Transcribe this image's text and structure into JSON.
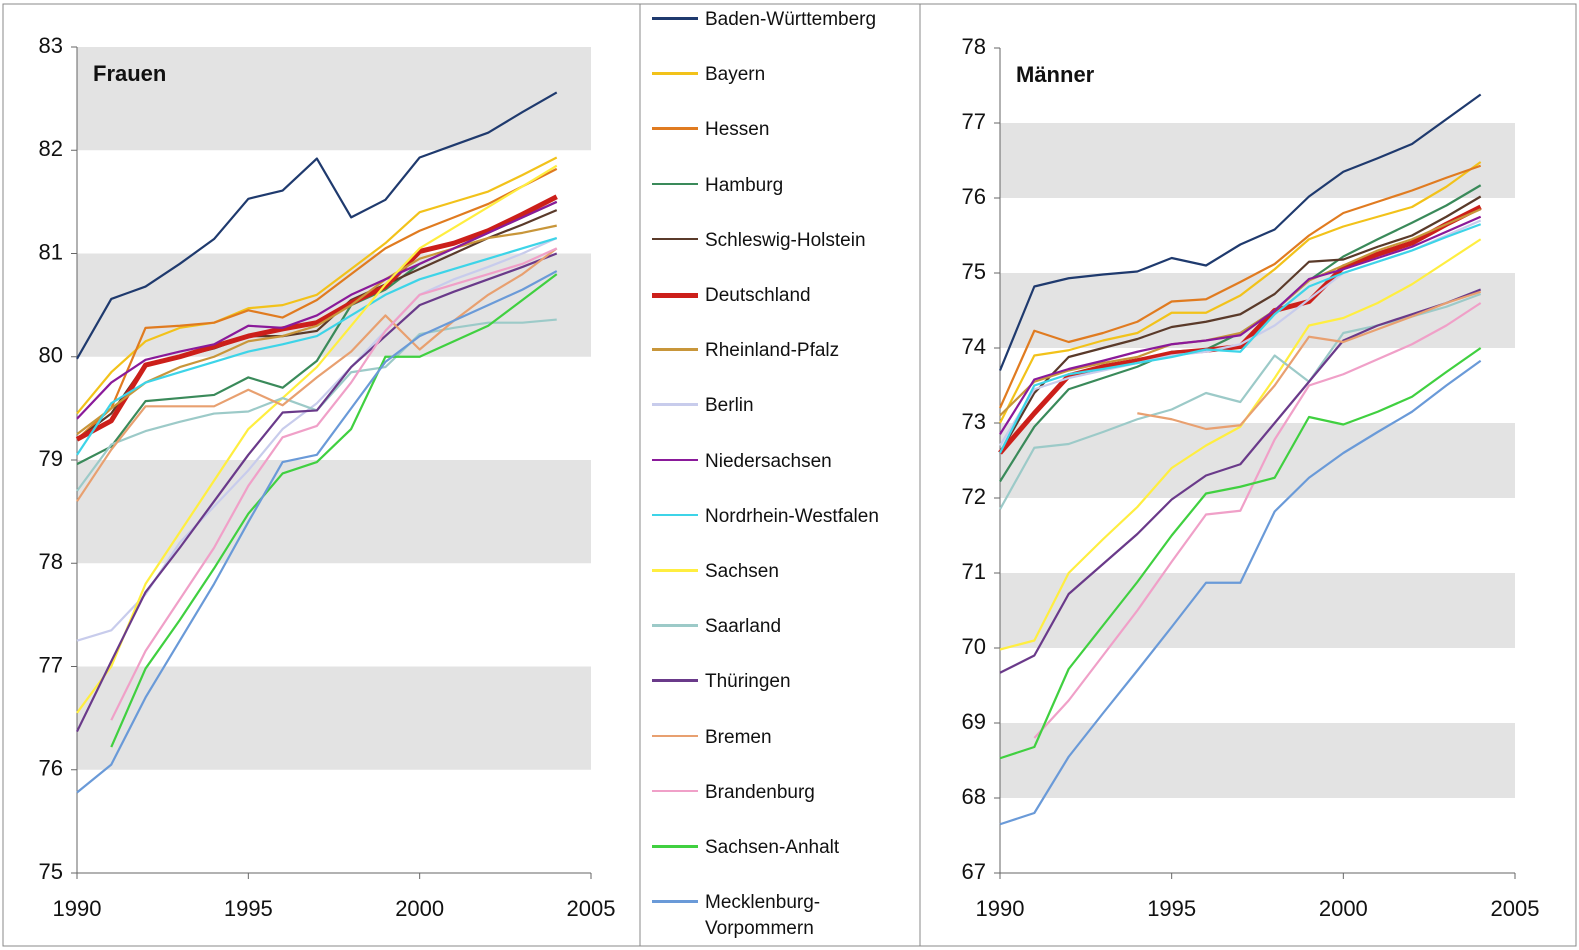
{
  "chart_data": [
    {
      "type": "line",
      "title": "Frauen",
      "x": [
        1990,
        1991,
        1992,
        1993,
        1994,
        1995,
        1996,
        1997,
        1998,
        1999,
        2000,
        2001,
        2002,
        2003,
        2004
      ],
      "xlim": [
        1990,
        2005
      ],
      "xticks": [
        1990,
        1995,
        2000,
        2005
      ],
      "ylim": [
        75,
        83
      ],
      "yticks": [
        75,
        76,
        77,
        78,
        79,
        80,
        81,
        82,
        83
      ],
      "grid": "bands",
      "series": [
        {
          "name": "Baden-Württemberg",
          "color": "#1f3a6e",
          "values": [
            79.98,
            80.56,
            80.68,
            80.9,
            81.14,
            81.53,
            81.61,
            81.92,
            81.35,
            81.52,
            81.93,
            82.05,
            82.17,
            82.37,
            82.56
          ]
        },
        {
          "name": "Bayern",
          "color": "#f2c21a",
          "values": [
            79.45,
            79.85,
            80.15,
            80.28,
            80.33,
            80.47,
            80.5,
            80.6,
            80.85,
            81.1,
            81.4,
            81.5,
            81.6,
            81.76,
            81.93
          ]
        },
        {
          "name": "Hessen",
          "color": "#e07b20",
          "values": [
            79.2,
            79.5,
            80.28,
            80.3,
            80.33,
            80.45,
            80.38,
            80.55,
            80.8,
            81.05,
            81.22,
            81.35,
            81.48,
            81.65,
            81.82
          ]
        },
        {
          "name": "Hamburg",
          "color": "#3a8a5a",
          "values": [
            78.96,
            79.13,
            79.57,
            79.6,
            79.63,
            79.8,
            79.7,
            79.96,
            80.5,
            80.65,
            80.9,
            81.05,
            81.2,
            81.35,
            81.5
          ]
        },
        {
          "name": "Schleswig-Holstein",
          "color": "#5a3a2a",
          "values": [
            79.2,
            79.45,
            79.93,
            80.0,
            80.08,
            80.2,
            80.2,
            80.25,
            80.55,
            80.7,
            80.85,
            81.0,
            81.15,
            81.28,
            81.42
          ]
        },
        {
          "name": "Deutschland",
          "color": "#cc1f1a",
          "linewidth": 5,
          "values": [
            79.2,
            79.38,
            79.92,
            80.0,
            80.1,
            80.2,
            80.27,
            80.33,
            80.52,
            80.68,
            81.02,
            81.1,
            81.22,
            81.38,
            81.55
          ]
        },
        {
          "name": "Rheinland-Pfalz",
          "color": "#c8963a",
          "values": [
            79.25,
            79.5,
            79.75,
            79.9,
            80.0,
            80.15,
            80.2,
            80.3,
            80.5,
            80.75,
            80.95,
            81.05,
            81.15,
            81.2,
            81.27
          ]
        },
        {
          "name": "Berlin",
          "color": "#c8ccec",
          "values": [
            77.25,
            77.35,
            77.7,
            78.2,
            78.55,
            78.9,
            79.3,
            79.55,
            79.9,
            80.25,
            80.6,
            80.75,
            80.87,
            81.0,
            81.15
          ]
        },
        {
          "name": "Niedersachsen",
          "color": "#8a1a9a",
          "values": [
            79.4,
            79.75,
            79.97,
            80.05,
            80.12,
            80.3,
            80.28,
            80.4,
            80.6,
            80.75,
            80.9,
            81.05,
            81.2,
            81.35,
            81.5
          ]
        },
        {
          "name": "Nordrhein-Westfalen",
          "color": "#3dd4e8",
          "values": [
            79.05,
            79.55,
            79.75,
            79.85,
            79.95,
            80.05,
            80.12,
            80.2,
            80.4,
            80.6,
            80.75,
            80.85,
            80.95,
            81.05,
            81.15
          ]
        },
        {
          "name": "Sachsen",
          "color": "#ffee40",
          "values": [
            76.55,
            77.0,
            77.8,
            78.3,
            78.8,
            79.3,
            79.6,
            79.9,
            80.3,
            80.7,
            81.05,
            81.25,
            81.45,
            81.65,
            81.85
          ]
        },
        {
          "name": "Saarland",
          "color": "#9ccac8",
          "values": [
            78.7,
            79.15,
            79.28,
            79.37,
            79.45,
            79.47,
            79.6,
            79.48,
            79.85,
            79.9,
            80.22,
            80.28,
            80.33,
            80.33,
            80.36
          ]
        },
        {
          "name": "Thüringen",
          "color": "#6a3a8a",
          "values": [
            76.37,
            77.05,
            77.72,
            78.15,
            78.6,
            79.05,
            79.46,
            79.48,
            79.9,
            80.2,
            80.5,
            80.63,
            80.75,
            80.87,
            81.0
          ]
        },
        {
          "name": "Bremen",
          "color": "#e8a070",
          "values": [
            78.6,
            79.1,
            79.52,
            79.52,
            79.52,
            79.68,
            79.53,
            79.8,
            80.05,
            80.4,
            80.07,
            80.35,
            80.6,
            80.8,
            81.05
          ]
        },
        {
          "name": "Brandenburg",
          "color": "#f0a0c8",
          "values": [
            null,
            76.48,
            77.15,
            77.65,
            78.15,
            78.75,
            79.22,
            79.33,
            79.75,
            80.25,
            80.6,
            80.7,
            80.8,
            80.9,
            81.05
          ]
        },
        {
          "name": "Sachsen-Anhalt",
          "color": "#40d040",
          "values": [
            null,
            76.22,
            76.98,
            77.45,
            77.95,
            78.48,
            78.87,
            78.98,
            79.3,
            80.0,
            80.0,
            80.15,
            80.3,
            80.55,
            80.8
          ]
        },
        {
          "name": "Mecklenburg-Vorpommern",
          "color": "#6a9ad8",
          "values": [
            75.78,
            76.05,
            76.7,
            77.25,
            77.8,
            78.4,
            78.98,
            79.05,
            79.5,
            79.95,
            80.2,
            80.35,
            80.5,
            80.65,
            80.83
          ]
        }
      ]
    },
    {
      "type": "line",
      "title": "Männer",
      "x": [
        1990,
        1991,
        1992,
        1993,
        1994,
        1995,
        1996,
        1997,
        1998,
        1999,
        2000,
        2001,
        2002,
        2003,
        2004
      ],
      "xlim": [
        1990,
        2005
      ],
      "xticks": [
        1990,
        1995,
        2000,
        2005
      ],
      "ylim": [
        67,
        78
      ],
      "yticks": [
        67,
        68,
        69,
        70,
        71,
        72,
        73,
        74,
        75,
        76,
        77,
        78
      ],
      "grid": "bands",
      "series": [
        {
          "values": [
            73.7,
            74.82,
            74.93,
            74.98,
            75.02,
            75.2,
            75.1,
            75.38,
            75.58,
            76.02,
            76.35,
            76.53,
            76.72,
            77.05,
            77.38
          ]
        },
        {
          "values": [
            73.0,
            73.9,
            73.97,
            74.1,
            74.2,
            74.47,
            74.47,
            74.7,
            75.05,
            75.45,
            75.62,
            75.75,
            75.88,
            76.15,
            76.48
          ]
        },
        {
          "values": [
            73.2,
            74.23,
            74.08,
            74.2,
            74.35,
            74.62,
            74.65,
            74.88,
            75.12,
            75.5,
            75.8,
            75.95,
            76.1,
            76.27,
            76.43
          ]
        },
        {
          "values": [
            72.22,
            72.95,
            73.45,
            73.6,
            73.75,
            73.95,
            73.98,
            74.2,
            74.5,
            74.9,
            75.22,
            75.45,
            75.67,
            75.9,
            76.17
          ]
        },
        {
          "values": [
            72.6,
            73.4,
            73.88,
            74.0,
            74.12,
            74.28,
            74.35,
            74.45,
            74.72,
            75.15,
            75.18,
            75.35,
            75.5,
            75.75,
            76.02
          ]
        },
        {
          "values": [
            72.6,
            73.13,
            73.63,
            73.75,
            73.83,
            73.93,
            73.97,
            74.02,
            74.5,
            74.62,
            75.08,
            75.25,
            75.4,
            75.65,
            75.88
          ]
        },
        {
          "values": [
            73.1,
            73.55,
            73.7,
            73.8,
            73.88,
            74.05,
            74.1,
            74.2,
            74.5,
            74.9,
            75.1,
            75.3,
            75.45,
            75.65,
            75.85
          ]
        },
        {
          "values": [
            72.7,
            73.45,
            73.6,
            73.7,
            73.8,
            73.9,
            73.95,
            74.05,
            74.3,
            74.65,
            75.0,
            75.15,
            75.3,
            75.5,
            75.7
          ]
        },
        {
          "values": [
            72.85,
            73.58,
            73.72,
            73.83,
            73.95,
            74.05,
            74.1,
            74.17,
            74.5,
            74.92,
            75.05,
            75.2,
            75.35,
            75.55,
            75.75
          ]
        },
        {
          "values": [
            72.6,
            73.5,
            73.65,
            73.72,
            73.8,
            73.88,
            73.98,
            73.95,
            74.45,
            74.82,
            75.0,
            75.15,
            75.3,
            75.48,
            75.65
          ]
        },
        {
          "values": [
            69.98,
            70.1,
            71.0,
            71.45,
            71.88,
            72.4,
            72.7,
            72.95,
            73.6,
            74.3,
            74.4,
            74.6,
            74.85,
            75.15,
            75.45
          ]
        },
        {
          "values": [
            71.85,
            72.67,
            72.72,
            72.88,
            73.05,
            73.18,
            73.4,
            73.28,
            73.9,
            73.55,
            74.2,
            74.3,
            74.42,
            74.55,
            74.72
          ]
        },
        {
          "values": [
            69.67,
            69.9,
            70.72,
            71.12,
            71.52,
            71.98,
            72.3,
            72.45,
            73.0,
            73.55,
            74.1,
            74.3,
            74.45,
            74.6,
            74.78
          ]
        },
        {
          "values": [
            null,
            null,
            null,
            null,
            73.13,
            73.05,
            72.92,
            72.97,
            73.5,
            74.15,
            74.08,
            74.25,
            74.42,
            74.6,
            74.75
          ]
        },
        {
          "values": [
            null,
            68.8,
            69.3,
            69.9,
            70.5,
            71.15,
            71.78,
            71.83,
            72.78,
            73.5,
            73.65,
            73.85,
            74.05,
            74.3,
            74.6
          ]
        },
        {
          "values": [
            68.53,
            68.68,
            69.72,
            70.3,
            70.88,
            71.5,
            72.06,
            72.15,
            72.27,
            73.08,
            72.98,
            73.15,
            73.35,
            73.68,
            74.0
          ]
        },
        {
          "values": [
            67.65,
            67.8,
            68.55,
            69.13,
            69.7,
            70.28,
            70.87,
            70.87,
            71.82,
            72.27,
            72.6,
            72.88,
            73.15,
            73.5,
            73.83
          ]
        }
      ]
    }
  ]
}
